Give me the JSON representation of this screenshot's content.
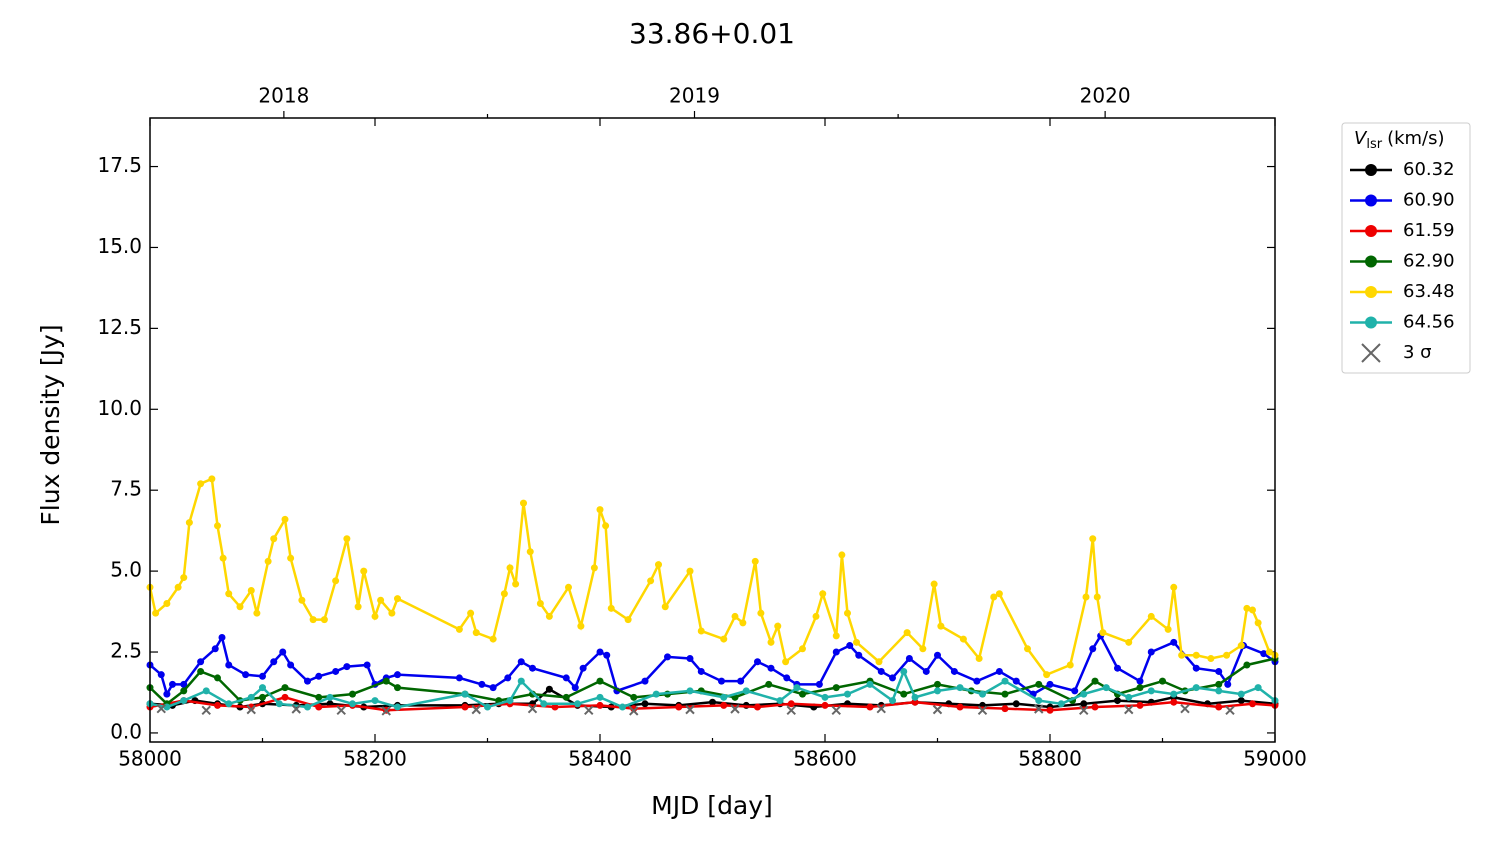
{
  "chart_data": {
    "type": "line",
    "title": "33.86+0.01",
    "xlabel": "MJD [day]",
    "ylabel": "Flux density [Jy]",
    "xlim": [
      58000,
      59000
    ],
    "xticks": [
      58000,
      58200,
      58400,
      58600,
      58800,
      59000
    ],
    "xminorticks": [
      58100,
      58300,
      58500,
      58700,
      58900
    ],
    "ylim": [
      -0.28,
      19.0
    ],
    "yticks": [
      {
        "value": 0,
        "label": "0.0"
      },
      {
        "value": 2.5,
        "label": "2.5"
      },
      {
        "value": 5,
        "label": "5.0"
      },
      {
        "value": 7.5,
        "label": "7.5"
      },
      {
        "value": 10,
        "label": "10.0"
      },
      {
        "value": 12.5,
        "label": "12.5"
      },
      {
        "value": 15,
        "label": "15.0"
      },
      {
        "value": 17.5,
        "label": "17.5"
      }
    ],
    "x2ticks": [
      {
        "value": 58119,
        "label": "2018"
      },
      {
        "value": 58484,
        "label": "2019"
      },
      {
        "value": 58849,
        "label": "2020"
      }
    ],
    "x2minorticks": [
      58300,
      58665
    ],
    "legend_title": {
      "symbol": "V",
      "subscript": "lsr",
      "unit": "(km/s)"
    },
    "legend": "outside-upper-right",
    "series": [
      {
        "name": "60.32",
        "color": "#000000",
        "x": [
          58000,
          58020,
          58040,
          58060,
          58080,
          58100,
          58130,
          58160,
          58190,
          58220,
          58280,
          58310,
          58340,
          58355,
          58380,
          58410,
          58440,
          58470,
          58500,
          58530,
          58560,
          58590,
          58620,
          58650,
          58680,
          58710,
          58740,
          58770,
          58800,
          58830,
          58860,
          58890,
          58910,
          58940,
          58970,
          59000
        ],
        "values": [
          0.9,
          0.85,
          1.0,
          0.9,
          0.8,
          0.9,
          0.85,
          0.9,
          0.8,
          0.85,
          0.85,
          0.9,
          0.9,
          1.35,
          0.85,
          0.8,
          0.9,
          0.85,
          0.95,
          0.85,
          0.9,
          0.8,
          0.9,
          0.85,
          0.95,
          0.9,
          0.85,
          0.9,
          0.8,
          0.9,
          1.0,
          0.95,
          1.1,
          0.9,
          1.0,
          0.9
        ]
      },
      {
        "name": "60.90",
        "color": "#0000ee",
        "x": [
          58000,
          58010,
          58015,
          58020,
          58030,
          58045,
          58058,
          58064,
          58070,
          58085,
          58100,
          58110,
          58118,
          58125,
          58140,
          58150,
          58165,
          58175,
          58193,
          58200,
          58210,
          58220,
          58275,
          58295,
          58305,
          58318,
          58330,
          58340,
          58370,
          58378,
          58385,
          58400,
          58406,
          58415,
          58440,
          58460,
          58480,
          58490,
          58508,
          58525,
          58540,
          58552,
          58566,
          58575,
          58595,
          58610,
          58622,
          58630,
          58650,
          58660,
          58675,
          58690,
          58700,
          58715,
          58735,
          58755,
          58770,
          58785,
          58800,
          58822,
          58838,
          58845,
          58860,
          58880,
          58890,
          58910,
          58930,
          58950,
          58958,
          58972,
          58990,
          59000
        ],
        "values": [
          2.1,
          1.8,
          1.2,
          1.5,
          1.5,
          2.2,
          2.6,
          2.95,
          2.1,
          1.8,
          1.75,
          2.2,
          2.5,
          2.1,
          1.6,
          1.75,
          1.9,
          2.05,
          2.1,
          1.5,
          1.7,
          1.8,
          1.7,
          1.5,
          1.4,
          1.7,
          2.2,
          2.0,
          1.7,
          1.4,
          2.0,
          2.5,
          2.4,
          1.3,
          1.6,
          2.35,
          2.3,
          1.9,
          1.6,
          1.6,
          2.2,
          2.0,
          1.7,
          1.5,
          1.5,
          2.5,
          2.7,
          2.4,
          1.9,
          1.7,
          2.3,
          1.9,
          2.4,
          1.9,
          1.6,
          1.9,
          1.6,
          1.2,
          1.5,
          1.3,
          2.6,
          3.0,
          2.0,
          1.6,
          2.5,
          2.8,
          2.0,
          1.9,
          1.5,
          2.7,
          2.45,
          2.2
        ]
      },
      {
        "name": "61.59",
        "color": "#ee0000",
        "x": [
          58000,
          58030,
          58060,
          58090,
          58120,
          58150,
          58180,
          58210,
          58280,
          58320,
          58360,
          58400,
          58430,
          58470,
          58510,
          58540,
          58570,
          58600,
          58640,
          58680,
          58720,
          58760,
          58800,
          58840,
          58880,
          58910,
          58950,
          58980,
          59000
        ],
        "values": [
          0.8,
          1.0,
          0.85,
          0.8,
          1.1,
          0.8,
          0.85,
          0.7,
          0.8,
          0.9,
          0.8,
          0.85,
          0.75,
          0.8,
          0.85,
          0.8,
          0.9,
          0.85,
          0.8,
          0.95,
          0.8,
          0.75,
          0.7,
          0.8,
          0.85,
          0.95,
          0.8,
          0.9,
          0.85
        ]
      },
      {
        "name": "62.90",
        "color": "#006600",
        "x": [
          58000,
          58015,
          58030,
          58045,
          58060,
          58080,
          58100,
          58120,
          58150,
          58180,
          58210,
          58220,
          58280,
          58310,
          58340,
          58370,
          58400,
          58430,
          58460,
          58490,
          58520,
          58550,
          58580,
          58610,
          58640,
          58670,
          58700,
          58730,
          58760,
          58790,
          58820,
          58840,
          58860,
          58880,
          58900,
          58920,
          58950,
          58975,
          59000
        ],
        "values": [
          1.4,
          0.9,
          1.3,
          1.9,
          1.7,
          1.0,
          1.1,
          1.4,
          1.1,
          1.2,
          1.6,
          1.4,
          1.2,
          1.0,
          1.2,
          1.1,
          1.6,
          1.1,
          1.2,
          1.3,
          1.1,
          1.5,
          1.2,
          1.4,
          1.6,
          1.2,
          1.5,
          1.3,
          1.2,
          1.5,
          1.0,
          1.6,
          1.2,
          1.4,
          1.6,
          1.3,
          1.5,
          2.1,
          2.3
        ]
      },
      {
        "name": "63.48",
        "color": "#ffd700",
        "x": [
          58000,
          58005,
          58015,
          58025,
          58030,
          58035,
          58045,
          58055,
          58060,
          58065,
          58070,
          58080,
          58090,
          58095,
          58105,
          58110,
          58120,
          58125,
          58135,
          58145,
          58155,
          58165,
          58175,
          58185,
          58190,
          58200,
          58205,
          58215,
          58220,
          58275,
          58285,
          58290,
          58305,
          58315,
          58320,
          58325,
          58332,
          58338,
          58347,
          58355,
          58372,
          58383,
          58395,
          58400,
          58405,
          58410,
          58425,
          58445,
          58452,
          58458,
          58480,
          58490,
          58510,
          58520,
          58527,
          58538,
          58543,
          58552,
          58558,
          58565,
          58580,
          58592,
          58598,
          58610,
          58615,
          58620,
          58628,
          58648,
          58673,
          58687,
          58697,
          58703,
          58723,
          58737,
          58750,
          58755,
          58780,
          58797,
          58818,
          58832,
          58838,
          58842,
          58847,
          58870,
          58890,
          58905,
          58910,
          58917,
          58930,
          58943,
          58957,
          58970,
          58975,
          58980,
          58985,
          58995,
          59000
        ],
        "values": [
          4.5,
          3.7,
          4.0,
          4.5,
          4.8,
          6.5,
          7.7,
          7.85,
          6.4,
          5.4,
          4.3,
          3.9,
          4.4,
          3.7,
          5.3,
          6.0,
          6.6,
          5.4,
          4.1,
          3.5,
          3.5,
          4.7,
          6.0,
          3.9,
          5.0,
          3.6,
          4.1,
          3.7,
          4.15,
          3.2,
          3.7,
          3.1,
          2.9,
          4.3,
          5.1,
          4.6,
          7.1,
          5.6,
          4.0,
          3.6,
          4.5,
          3.3,
          5.1,
          6.9,
          6.4,
          3.85,
          3.5,
          4.7,
          5.2,
          3.9,
          5.0,
          3.15,
          2.9,
          3.6,
          3.4,
          5.3,
          3.7,
          2.8,
          3.3,
          2.2,
          2.6,
          3.6,
          4.3,
          3.0,
          5.5,
          3.7,
          2.8,
          2.2,
          3.1,
          2.6,
          4.6,
          3.3,
          2.9,
          2.3,
          4.2,
          4.3,
          2.6,
          1.8,
          2.1,
          4.2,
          6.0,
          4.2,
          3.1,
          2.8,
          3.6,
          3.2,
          4.5,
          2.4,
          2.4,
          2.3,
          2.4,
          2.7,
          3.85,
          3.8,
          3.4,
          2.5,
          2.4
        ]
      },
      {
        "name": "64.56",
        "color": "#20b2aa",
        "x": [
          58000,
          58015,
          58030,
          58050,
          58070,
          58090,
          58100,
          58115,
          58140,
          58160,
          58180,
          58200,
          58220,
          58280,
          58300,
          58320,
          58330,
          58350,
          58380,
          58400,
          58420,
          58450,
          58480,
          58510,
          58530,
          58560,
          58575,
          58600,
          58620,
          58640,
          58660,
          58670,
          58680,
          58700,
          58720,
          58740,
          58760,
          58790,
          58810,
          58830,
          58850,
          58870,
          58890,
          58910,
          58930,
          58950,
          58970,
          58985,
          59000
        ],
        "values": [
          0.9,
          0.8,
          1.0,
          1.3,
          0.9,
          1.1,
          1.4,
          0.9,
          0.8,
          1.1,
          0.9,
          1.0,
          0.8,
          1.2,
          0.8,
          1.0,
          1.6,
          0.9,
          0.9,
          1.1,
          0.8,
          1.2,
          1.3,
          1.1,
          1.3,
          1.0,
          1.4,
          1.1,
          1.2,
          1.5,
          1.0,
          1.9,
          1.1,
          1.3,
          1.4,
          1.2,
          1.6,
          1.0,
          0.9,
          1.2,
          1.4,
          1.1,
          1.3,
          1.2,
          1.4,
          1.3,
          1.2,
          1.4,
          1.0
        ]
      },
      {
        "name": "3 σ",
        "color": "#666666",
        "marker": "x",
        "x": [
          58010,
          58050,
          58090,
          58130,
          58170,
          58210,
          58290,
          58340,
          58390,
          58430,
          58480,
          58520,
          58570,
          58610,
          58650,
          58700,
          58740,
          58790,
          58830,
          58870,
          58920,
          58960
        ],
        "values": [
          0.75,
          0.7,
          0.72,
          0.74,
          0.7,
          0.68,
          0.72,
          0.75,
          0.7,
          0.68,
          0.72,
          0.74,
          0.7,
          0.7,
          0.75,
          0.72,
          0.7,
          0.74,
          0.7,
          0.72,
          0.75,
          0.7
        ]
      }
    ]
  }
}
